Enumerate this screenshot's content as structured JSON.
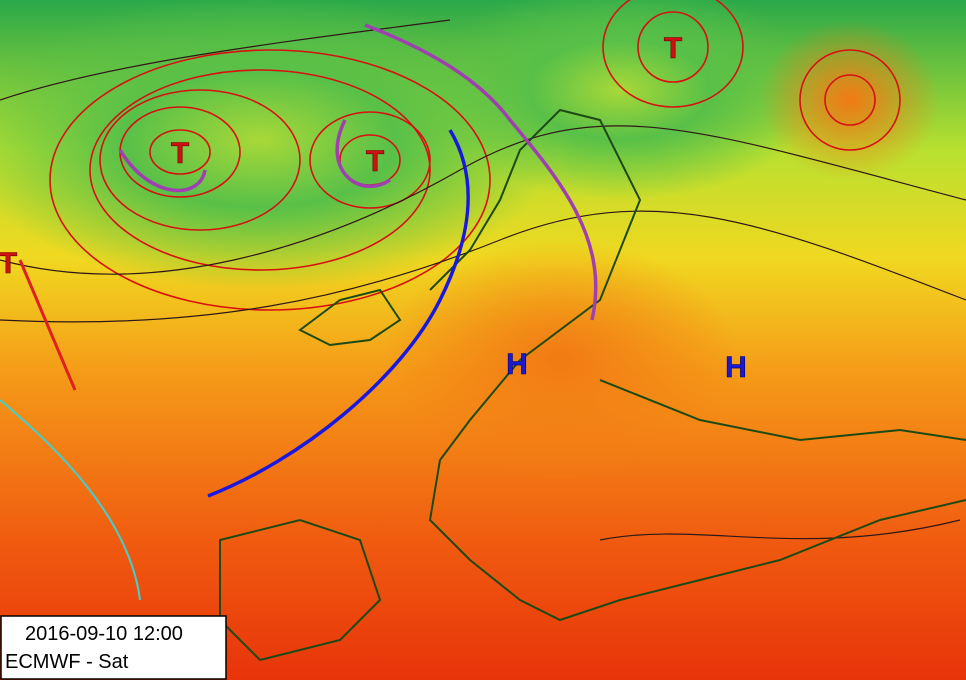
{
  "pressure_centers": {
    "lows": [
      "T",
      "T",
      "T",
      "T"
    ],
    "highs": [
      "H",
      "H"
    ]
  },
  "info_box": {
    "valid_time": "2016-09-10 12:00",
    "model": "ECMWF - Sat"
  }
}
